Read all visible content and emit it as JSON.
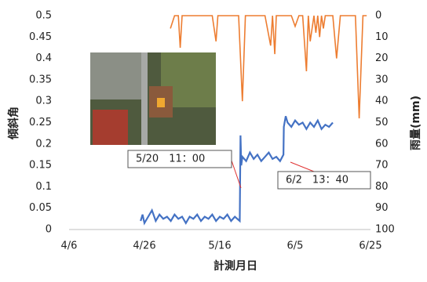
{
  "chart_data": {
    "type": "line",
    "xlabel": "計測月日",
    "ylabel": "傾斜角",
    "y2label": "雨量(mm)",
    "xlim": [
      0,
      80
    ],
    "xticks": [
      {
        "value": 0,
        "label": "4/6"
      },
      {
        "value": 20,
        "label": "4/26"
      },
      {
        "value": 40,
        "label": "5/16"
      },
      {
        "value": 60,
        "label": "6/5"
      },
      {
        "value": 80,
        "label": "6/25"
      }
    ],
    "ylim": [
      0,
      0.5
    ],
    "yticks": [
      0,
      0.05,
      0.1,
      0.15,
      0.2,
      0.25,
      0.3,
      0.35,
      0.4,
      0.45,
      0.5
    ],
    "y2lim": [
      0,
      100
    ],
    "y2ticks": [
      0,
      10,
      20,
      30,
      40,
      50,
      60,
      70,
      80,
      90,
      100
    ],
    "y2_inverted": true,
    "series": [
      {
        "color": "#4472c4",
        "x": [
          19,
          19.5,
          20,
          21,
          22,
          23,
          24,
          25,
          26,
          27,
          28,
          29,
          30,
          31,
          32,
          33,
          34,
          35,
          36,
          37,
          38,
          39,
          40,
          41,
          42,
          43,
          44,
          45.3,
          45.5,
          45.7,
          46,
          47,
          48,
          49,
          50,
          51,
          52,
          53,
          54,
          55,
          56,
          56.9,
          57,
          57.5,
          58,
          59,
          60,
          61,
          62,
          63,
          64,
          65,
          66,
          67,
          68,
          69,
          70
        ],
        "values": [
          0.02,
          0.035,
          0.015,
          0.03,
          0.045,
          0.02,
          0.035,
          0.025,
          0.03,
          0.02,
          0.035,
          0.025,
          0.03,
          0.015,
          0.03,
          0.025,
          0.035,
          0.02,
          0.03,
          0.025,
          0.035,
          0.02,
          0.03,
          0.025,
          0.035,
          0.02,
          0.03,
          0.02,
          0.22,
          0.15,
          0.17,
          0.16,
          0.18,
          0.165,
          0.175,
          0.16,
          0.17,
          0.18,
          0.165,
          0.17,
          0.16,
          0.175,
          0.24,
          0.265,
          0.25,
          0.24,
          0.255,
          0.245,
          0.25,
          0.235,
          0.25,
          0.24,
          0.255,
          0.235,
          0.245,
          0.24,
          0.25
        ]
      },
      {
        "color": "#ed7d31",
        "axis": "y2",
        "x": [
          26.9,
          28,
          29,
          29.5,
          30,
          38,
          39,
          39.5,
          40,
          45,
          46,
          46.8,
          47,
          52,
          53.5,
          54,
          54.6,
          55,
          59,
          60,
          61,
          62,
          63,
          63.5,
          64,
          65,
          65.5,
          66,
          66.5,
          67,
          67.5,
          68,
          70,
          71,
          72,
          76,
          77,
          78,
          79
        ],
        "values": [
          6,
          0,
          0,
          15,
          0,
          0,
          12,
          0,
          0,
          0,
          40,
          0,
          0,
          0,
          14,
          0,
          18,
          0,
          0,
          5,
          0,
          0,
          26,
          0,
          12,
          0,
          8,
          0,
          10,
          0,
          6,
          0,
          0,
          20,
          0,
          0,
          48,
          0,
          0
        ]
      }
    ],
    "annotations": [
      {
        "text": "5/20　11：00"
      },
      {
        "text": "6/2　13：40"
      }
    ]
  }
}
